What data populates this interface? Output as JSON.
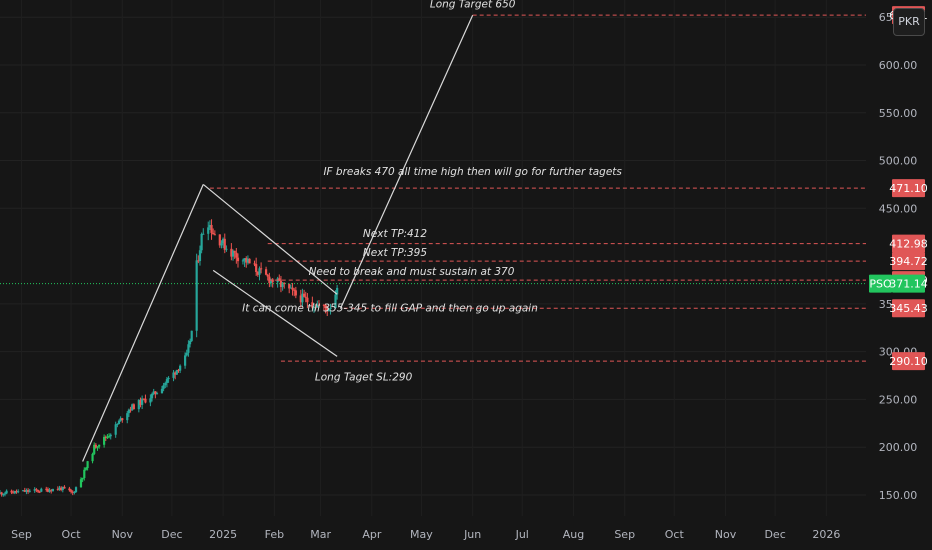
{
  "currency_label": "PKR",
  "colors": {
    "background": "#161616",
    "up": "#26a69a",
    "up_bright": "#22c55e",
    "down": "#ef5350",
    "alert_line": "#e05656",
    "price_line": "#22c55e",
    "drawing": "#d9d9d9"
  },
  "chart_data": {
    "type": "candlestick",
    "symbol": "PSO",
    "current_price": 371.14,
    "y_scale": "linear",
    "ylim": [
      128,
      668
    ],
    "y_ticks": [
      150,
      200,
      250,
      300,
      350,
      450,
      500,
      550,
      600,
      650
    ],
    "y_tick_labels": [
      "150.00",
      "200.00",
      "250.00",
      "300.00",
      "350.00",
      "450.00",
      "500.00",
      "550.00",
      "600.00",
      "650.00"
    ],
    "x_range": [
      "2024-08-19",
      "2026-01-25"
    ],
    "x_ticks": [
      {
        "date": "2024-09-01",
        "label": "Sep"
      },
      {
        "date": "2024-10-01",
        "label": "Oct"
      },
      {
        "date": "2024-11-01",
        "label": "Nov"
      },
      {
        "date": "2024-12-01",
        "label": "Dec"
      },
      {
        "date": "2025-01-01",
        "label": "2025"
      },
      {
        "date": "2025-02-01",
        "label": "Feb"
      },
      {
        "date": "2025-03-01",
        "label": "Mar"
      },
      {
        "date": "2025-04-01",
        "label": "Apr"
      },
      {
        "date": "2025-05-01",
        "label": "May"
      },
      {
        "date": "2025-06-01",
        "label": "Jun"
      },
      {
        "date": "2025-07-01",
        "label": "Jul"
      },
      {
        "date": "2025-08-01",
        "label": "Aug"
      },
      {
        "date": "2025-09-01",
        "label": "Sep"
      },
      {
        "date": "2025-10-01",
        "label": "Oct"
      },
      {
        "date": "2025-11-01",
        "label": "Nov"
      },
      {
        "date": "2025-12-01",
        "label": "Dec"
      },
      {
        "date": "2026-01-01",
        "label": "2026"
      }
    ],
    "candle_path": [
      [
        "2024-08-19",
        152
      ],
      [
        "2024-09-15",
        155
      ],
      [
        "2024-09-25",
        157
      ],
      [
        "2024-10-02",
        152
      ],
      [
        "2024-10-08",
        170
      ],
      [
        "2024-10-15",
        200
      ],
      [
        "2024-10-25",
        215
      ],
      [
        "2024-11-05",
        240
      ],
      [
        "2024-11-20",
        255
      ],
      [
        "2024-12-01",
        275
      ],
      [
        "2024-12-10",
        295
      ],
      [
        "2024-12-14",
        330
      ],
      [
        "2024-12-16",
        390
      ],
      [
        "2024-12-19",
        420
      ],
      [
        "2024-12-22",
        440
      ],
      [
        "2024-12-26",
        425
      ],
      [
        "2025-01-05",
        405
      ],
      [
        "2025-01-15",
        395
      ],
      [
        "2025-01-25",
        380
      ],
      [
        "2025-02-05",
        370
      ],
      [
        "2025-02-15",
        358
      ],
      [
        "2025-02-25",
        350
      ],
      [
        "2025-03-05",
        345
      ],
      [
        "2025-03-09",
        352
      ],
      [
        "2025-03-11",
        371
      ]
    ],
    "horizontal_levels": [
      {
        "label": "652.11",
        "value": 652.11,
        "start": "2025-06-01"
      },
      {
        "label": "471.10",
        "value": 471.1,
        "start": "2024-12-24"
      },
      {
        "label": "412.98",
        "value": 412.98,
        "start": "2025-01-28"
      },
      {
        "label": "394.72",
        "value": 394.72,
        "start": "2025-01-28"
      },
      {
        "label": "374.79",
        "value": 374.79,
        "start": "2025-01-28"
      },
      {
        "label": "345.43",
        "value": 345.43,
        "start": "2025-03-15"
      },
      {
        "label": "290.10",
        "value": 290.1,
        "start": "2025-02-05"
      }
    ],
    "trend_lines": [
      [
        [
          "2024-10-08",
          185
        ],
        [
          "2024-12-20",
          475
        ]
      ],
      [
        [
          "2024-12-20",
          475
        ],
        [
          "2025-03-11",
          360
        ]
      ],
      [
        [
          "2024-12-26",
          385
        ],
        [
          "2025-03-11",
          295
        ]
      ],
      [
        [
          "2025-03-13",
          345
        ],
        [
          "2025-06-01",
          652
        ]
      ]
    ],
    "annotations": [
      {
        "text": "Long Target 650",
        "date": "2025-06-01",
        "value": 660
      },
      {
        "text": "IF breaks 470 all time high then will go for further tagets",
        "date": "2025-06-01",
        "value": 485
      },
      {
        "text": "Next TP:412",
        "date": "2025-04-15",
        "value": 420
      },
      {
        "text": "Next TP:395",
        "date": "2025-04-15",
        "value": 400
      },
      {
        "text": "Need to break and must sustain at 370",
        "date": "2025-04-25",
        "value": 380
      },
      {
        "text": "It can come till 355-345 to fill GAP and then go up again",
        "date": "2025-04-12",
        "value": 342
      },
      {
        "text": "Long Taget SL:290",
        "date": "2025-03-27",
        "value": 270
      }
    ]
  }
}
